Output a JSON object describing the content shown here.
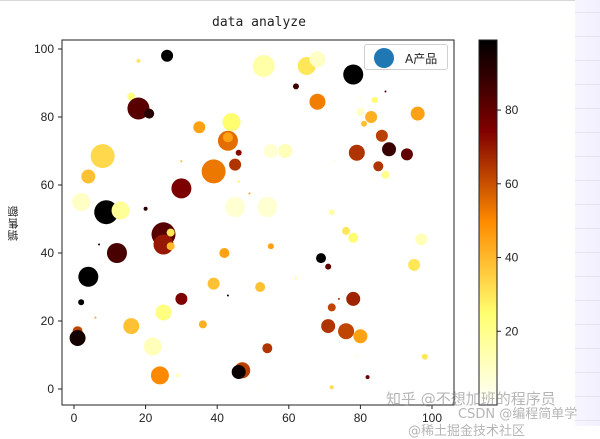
{
  "figure": {
    "title": "data analyze",
    "ylabel": "销售额",
    "legend_label": "A产品",
    "legend_color": "#1f77b4"
  },
  "watermarks": {
    "line1": "知乎 @不想加班的程序员",
    "line2": "CSDN @编程简单学",
    "line3": "@稀土掘金技术社区"
  },
  "chart_data": {
    "type": "scatter",
    "title": "data analyze",
    "xlabel": "",
    "ylabel": "销售额",
    "xlim": [
      -3,
      106
    ],
    "ylim": [
      -4,
      102
    ],
    "xticks": [
      0,
      20,
      40,
      60,
      80,
      100
    ],
    "yticks": [
      0,
      20,
      40,
      60,
      80,
      100
    ],
    "grid": false,
    "legend": {
      "entries": [
        "A产品"
      ],
      "position": "upper right"
    },
    "colorbar": {
      "cmap": "afmhot_r",
      "range": [
        0,
        99
      ],
      "ticks": [
        20,
        40,
        60,
        80
      ]
    },
    "series": [
      {
        "name": "A产品",
        "points": [
          {
            "x": 26,
            "y": 98,
            "size": 6,
            "c": 99
          },
          {
            "x": 18,
            "y": 96.5,
            "size": 2,
            "c": 30
          },
          {
            "x": 16,
            "y": 86,
            "size": 4,
            "c": 22
          },
          {
            "x": 18,
            "y": 82.5,
            "size": 11,
            "c": 82
          },
          {
            "x": 21,
            "y": 81,
            "size": 5,
            "c": 92
          },
          {
            "x": 35,
            "y": 77,
            "size": 6,
            "c": 45
          },
          {
            "x": 44,
            "y": 78.5,
            "size": 9,
            "c": 25
          },
          {
            "x": 43,
            "y": 73,
            "size": 10,
            "c": 55
          },
          {
            "x": 43,
            "y": 74,
            "size": 5,
            "c": 45
          },
          {
            "x": 46,
            "y": 69.5,
            "size": 3,
            "c": 73
          },
          {
            "x": 45,
            "y": 66,
            "size": 6,
            "c": 65
          },
          {
            "x": 39,
            "y": 64,
            "size": 12,
            "c": 53
          },
          {
            "x": 8,
            "y": 68.5,
            "size": 12,
            "c": 33
          },
          {
            "x": 4,
            "y": 62.5,
            "size": 7,
            "c": 38
          },
          {
            "x": 30,
            "y": 59,
            "size": 10,
            "c": 75
          },
          {
            "x": 30,
            "y": 67,
            "size": 1,
            "c": 40
          },
          {
            "x": 46,
            "y": 61,
            "size": 1,
            "c": 30
          },
          {
            "x": 49,
            "y": 57.5,
            "size": 1,
            "c": 45
          },
          {
            "x": 2,
            "y": 55,
            "size": 9,
            "c": 10
          },
          {
            "x": 9,
            "y": 52,
            "size": 12,
            "c": 99
          },
          {
            "x": 13,
            "y": 52.5,
            "size": 9,
            "c": 18
          },
          {
            "x": 20,
            "y": 53,
            "size": 2,
            "c": 92
          },
          {
            "x": 45,
            "y": 53.5,
            "size": 10,
            "c": 8
          },
          {
            "x": 54,
            "y": 53.5,
            "size": 10,
            "c": 8
          },
          {
            "x": 25,
            "y": 45.5,
            "size": 12,
            "c": 82
          },
          {
            "x": 25,
            "y": 42.5,
            "size": 10,
            "c": 70
          },
          {
            "x": 27,
            "y": 46,
            "size": 4,
            "c": 30
          },
          {
            "x": 27,
            "y": 42,
            "size": 4,
            "c": 40
          },
          {
            "x": 7,
            "y": 42.5,
            "size": 1,
            "c": 98
          },
          {
            "x": 12,
            "y": 40,
            "size": 10,
            "c": 85
          },
          {
            "x": 42,
            "y": 40,
            "size": 5,
            "c": 45
          },
          {
            "x": 4,
            "y": 33,
            "size": 10,
            "c": 99
          },
          {
            "x": 39,
            "y": 31,
            "size": 6,
            "c": 38
          },
          {
            "x": 43,
            "y": 27.5,
            "size": 1,
            "c": 99
          },
          {
            "x": 52,
            "y": 30,
            "size": 5,
            "c": 38
          },
          {
            "x": 2,
            "y": 25.5,
            "size": 3,
            "c": 99
          },
          {
            "x": 30,
            "y": 26.5,
            "size": 6,
            "c": 75
          },
          {
            "x": 25,
            "y": 22.5,
            "size": 8,
            "c": 22
          },
          {
            "x": 6,
            "y": 21,
            "size": 1,
            "c": 45
          },
          {
            "x": 16,
            "y": 18.5,
            "size": 8,
            "c": 38
          },
          {
            "x": 36,
            "y": 19,
            "size": 4,
            "c": 42
          },
          {
            "x": 1,
            "y": 17,
            "size": 5,
            "c": 62
          },
          {
            "x": 1,
            "y": 15,
            "size": 8,
            "c": 95
          },
          {
            "x": 22,
            "y": 12.5,
            "size": 9,
            "c": 12
          },
          {
            "x": 54,
            "y": 12,
            "size": 5,
            "c": 65
          },
          {
            "x": 24,
            "y": 4,
            "size": 9,
            "c": 50
          },
          {
            "x": 29,
            "y": 4,
            "size": 2,
            "c": 12
          },
          {
            "x": 47,
            "y": 5.5,
            "size": 8,
            "c": 63
          },
          {
            "x": 46,
            "y": 5,
            "size": 7,
            "c": 97
          },
          {
            "x": 51,
            "y": 1,
            "size": 1,
            "c": 5
          },
          {
            "x": 53,
            "y": 95,
            "size": 11,
            "c": 15
          },
          {
            "x": 65,
            "y": 95,
            "size": 9,
            "c": 30
          },
          {
            "x": 68,
            "y": 97,
            "size": 8,
            "c": 10
          },
          {
            "x": 78,
            "y": 92.5,
            "size": 10,
            "c": 99
          },
          {
            "x": 62,
            "y": 89,
            "size": 3,
            "c": 88
          },
          {
            "x": 68,
            "y": 84.5,
            "size": 8,
            "c": 52
          },
          {
            "x": 80,
            "y": 85.5,
            "size": 1,
            "c": 10
          },
          {
            "x": 87,
            "y": 87.5,
            "size": 1,
            "c": 85
          },
          {
            "x": 84,
            "y": 85,
            "size": 3,
            "c": 25
          },
          {
            "x": 80,
            "y": 81.5,
            "size": 4,
            "c": 10
          },
          {
            "x": 81,
            "y": 78,
            "size": 3,
            "c": 38
          },
          {
            "x": 83,
            "y": 80,
            "size": 6,
            "c": 42
          },
          {
            "x": 96,
            "y": 81,
            "size": 7,
            "c": 45
          },
          {
            "x": 86,
            "y": 74.5,
            "size": 6,
            "c": 63
          },
          {
            "x": 79,
            "y": 69.5,
            "size": 8,
            "c": 65
          },
          {
            "x": 88,
            "y": 70.5,
            "size": 7,
            "c": 88
          },
          {
            "x": 93,
            "y": 69,
            "size": 6,
            "c": 80
          },
          {
            "x": 85,
            "y": 65.5,
            "size": 5,
            "c": 65
          },
          {
            "x": 87,
            "y": 63,
            "size": 4,
            "c": 20
          },
          {
            "x": 59,
            "y": 70,
            "size": 7,
            "c": 12
          },
          {
            "x": 55,
            "y": 70,
            "size": 7,
            "c": 8
          },
          {
            "x": 73,
            "y": 67,
            "size": 1,
            "c": 8
          },
          {
            "x": 72,
            "y": 52,
            "size": 3,
            "c": 15
          },
          {
            "x": 76,
            "y": 46.5,
            "size": 4,
            "c": 30
          },
          {
            "x": 78,
            "y": 44.5,
            "size": 5,
            "c": 25
          },
          {
            "x": 97,
            "y": 44,
            "size": 6,
            "c": 12
          },
          {
            "x": 95,
            "y": 36.5,
            "size": 6,
            "c": 30
          },
          {
            "x": 69,
            "y": 38.5,
            "size": 5,
            "c": 99
          },
          {
            "x": 71,
            "y": 36,
            "size": 3,
            "c": 80
          },
          {
            "x": 62,
            "y": 32.5,
            "size": 1,
            "c": 25
          },
          {
            "x": 74,
            "y": 26.5,
            "size": 1,
            "c": 65
          },
          {
            "x": 78,
            "y": 26.5,
            "size": 7,
            "c": 68
          },
          {
            "x": 72,
            "y": 24,
            "size": 4,
            "c": 62
          },
          {
            "x": 71,
            "y": 18.5,
            "size": 7,
            "c": 65
          },
          {
            "x": 76,
            "y": 17,
            "size": 8,
            "c": 62
          },
          {
            "x": 80,
            "y": 15.5,
            "size": 7,
            "c": 45
          },
          {
            "x": 79,
            "y": 9.5,
            "size": 1,
            "c": 10
          },
          {
            "x": 98,
            "y": 9.5,
            "size": 3,
            "c": 30
          },
          {
            "x": 82,
            "y": 3.5,
            "size": 2,
            "c": 78
          },
          {
            "x": 72,
            "y": 0.5,
            "size": 2,
            "c": 32
          },
          {
            "x": 55,
            "y": 42,
            "size": 3,
            "c": 45
          }
        ]
      }
    ]
  }
}
